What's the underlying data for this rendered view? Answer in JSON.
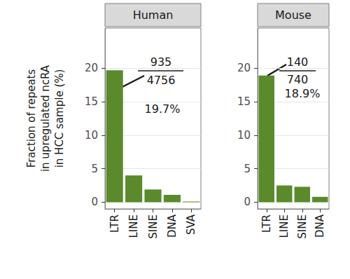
{
  "chart_data": [
    {
      "type": "bar",
      "title": "Human",
      "ylabel": "Fraction of repeats\nin upregulated ncRA\nin HCC sample (%)",
      "categories": [
        "LTR",
        "LINE",
        "SINE",
        "DNA",
        "SVA"
      ],
      "values": [
        19.7,
        4.0,
        1.9,
        1.1,
        0.1
      ],
      "color": "#5a8a2b",
      "ylim": [
        -1,
        26
      ],
      "yticks": [
        0,
        5,
        10,
        15,
        20
      ],
      "grid": true,
      "annotations": [
        "935",
        "4756",
        "19.7%"
      ]
    },
    {
      "type": "bar",
      "title": "Mouse",
      "categories": [
        "LTR",
        "LINE",
        "SINE",
        "DNA"
      ],
      "values": [
        18.9,
        2.5,
        2.3,
        0.8
      ],
      "color": "#5a8a2b",
      "ylim": [
        -1,
        26
      ],
      "yticks": [
        0,
        5,
        10,
        15,
        20
      ],
      "grid": true,
      "annotations": [
        "140",
        "740",
        "18.9%"
      ]
    }
  ]
}
